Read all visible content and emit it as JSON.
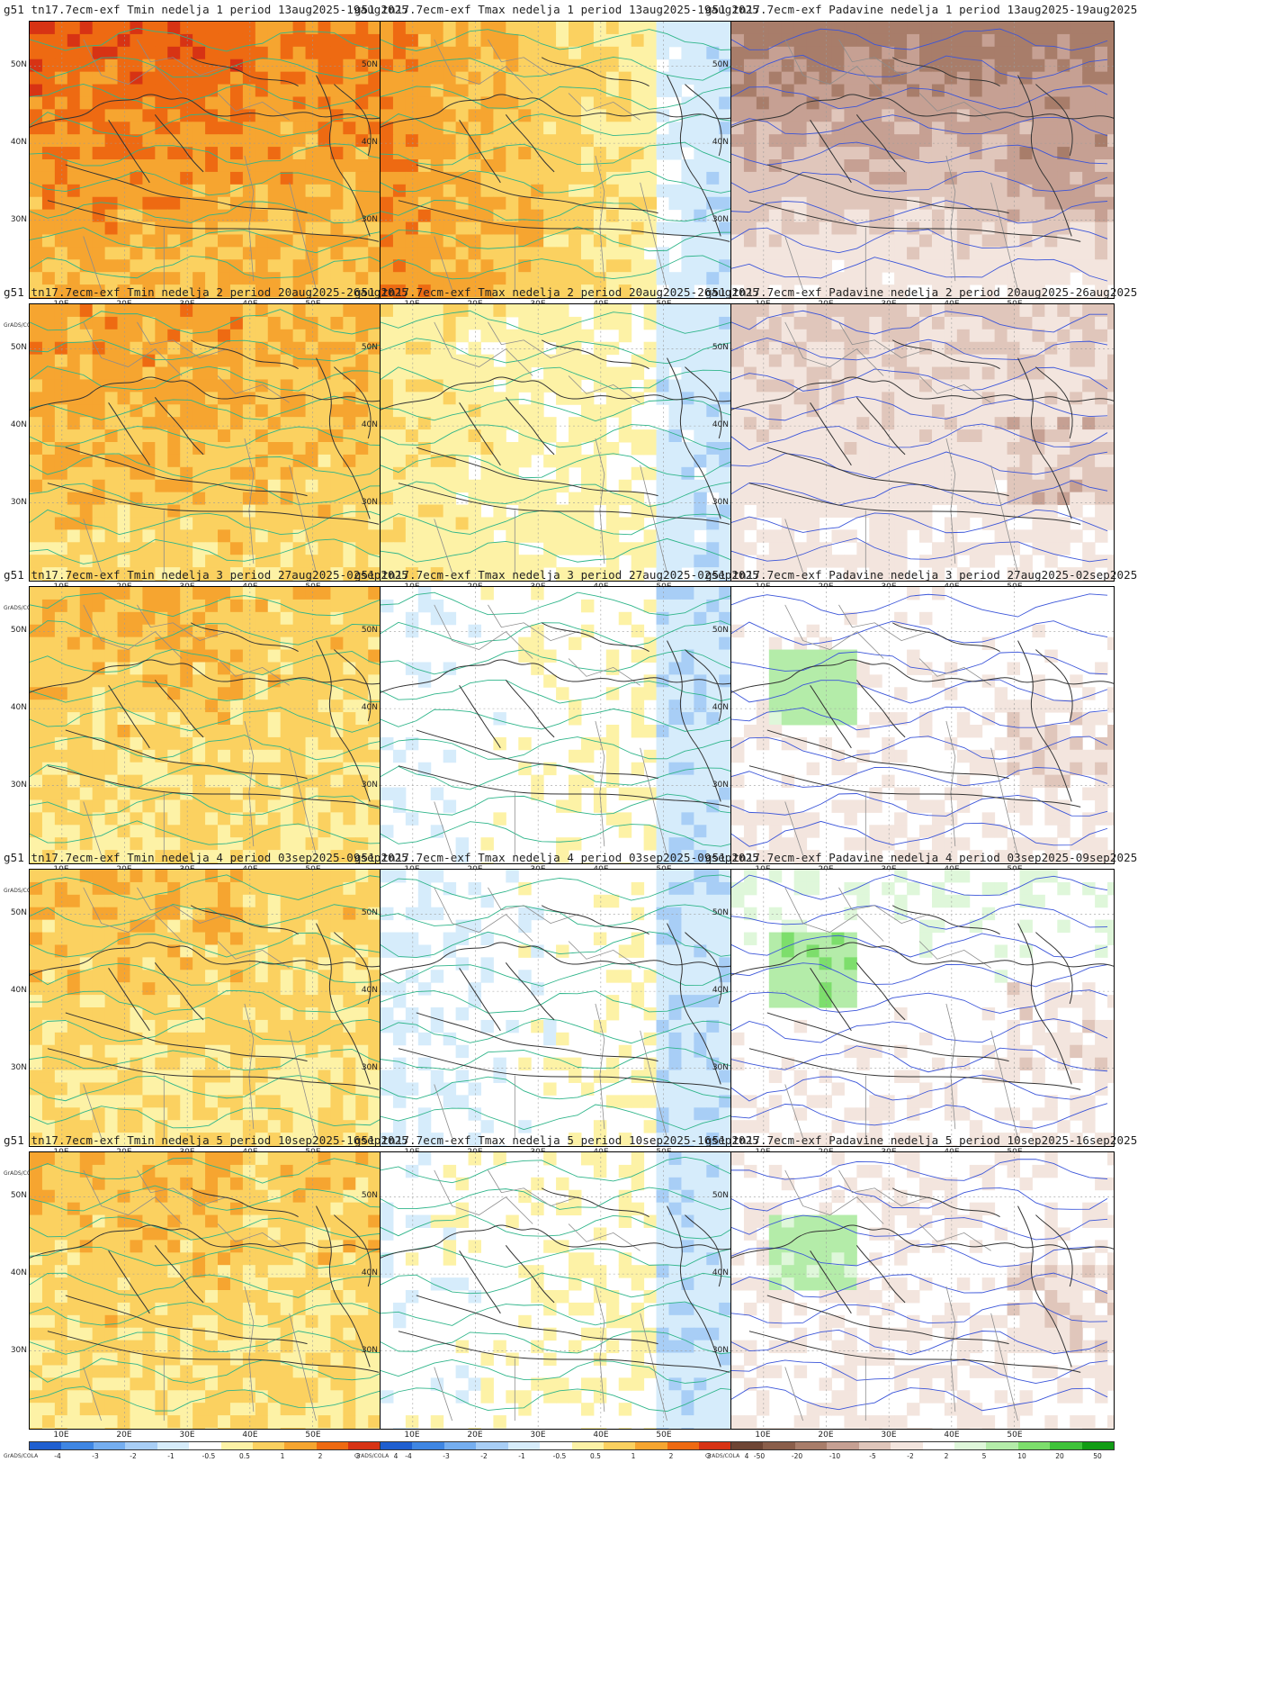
{
  "lat_labels": [
    "50N",
    "40N",
    "30N"
  ],
  "lon_labels": [
    "10E",
    "20E",
    "30E",
    "40E",
    "50E"
  ],
  "credit": "GrADS/COLA",
  "temp_scale": {
    "ticks": [
      "-4",
      "-3",
      "-2",
      "-1",
      "-0.5",
      "0.5",
      "1",
      "2",
      "3",
      "4"
    ],
    "colors": [
      "#1f5fd0",
      "#3f86e3",
      "#75aef0",
      "#a8cef6",
      "#d6ecfb",
      "#ffffff",
      "#fdf2a6",
      "#fbd160",
      "#f6a530",
      "#ee6a12",
      "#d73314",
      "#a50d0d"
    ]
  },
  "precip_scale": {
    "ticks": [
      "-50",
      "-20",
      "-10",
      "-5",
      "-2",
      "2",
      "5",
      "10",
      "20",
      "50"
    ],
    "colors": [
      "#6e4534",
      "#8a5e4a",
      "#a87d6a",
      "#c6a093",
      "#e0c6bb",
      "#f3e5de",
      "#ffffff",
      "#dff7da",
      "#b4eca9",
      "#7dde6c",
      "#3fc33a",
      "#119c14"
    ]
  },
  "panels": [
    {
      "title": "g51 tn17.7ecm-exf Tmin nedelja 1 period 13aug2025-19aug2025",
      "kind": "tmin",
      "level": 3.2
    },
    {
      "title": "g51 tn17.7ecm-exf Tmax nedelja 1 period 13aug2025-19aug2025",
      "kind": "tmax",
      "level": 2.4
    },
    {
      "title": "g51 tn17.7ecm-exf Padavine nedelja 1 period 13aug2025-19aug2025",
      "kind": "prec",
      "level": -1.6
    },
    {
      "title": "g51 tn17.7ecm-exf Tmin nedelja 2 period 20aug2025-26aug2025",
      "kind": "tmin",
      "level": 2.2
    },
    {
      "title": "g51 tn17.7ecm-exf Tmax nedelja 2 period 20aug2025-26aug2025",
      "kind": "tmax",
      "level": 0.6
    },
    {
      "title": "g51 tn17.7ecm-exf Padavine nedelja 2 period 20aug2025-26aug2025",
      "kind": "prec",
      "level": -0.5
    },
    {
      "title": "g51 tn17.7ecm-exf Tmin nedelja 3 period 27aug2025-02sep2025",
      "kind": "tmin",
      "level": 1.6
    },
    {
      "title": "g51 tn17.7ecm-exf Tmax nedelja 3 period 27aug2025-02sep2025",
      "kind": "tmax",
      "level": -0.6
    },
    {
      "title": "g51 tn17.7ecm-exf Padavine nedelja 3 period 27aug2025-02sep2025",
      "kind": "prec",
      "level": 0.2
    },
    {
      "title": "g51 tn17.7ecm-exf Tmin nedelja 4 period 03sep2025-09sep2025",
      "kind": "tmin",
      "level": 1.5
    },
    {
      "title": "g51 tn17.7ecm-exf Tmax nedelja 4 period 03sep2025-09sep2025",
      "kind": "tmax",
      "level": -0.8
    },
    {
      "title": "g51 tn17.7ecm-exf Padavine nedelja 4 period 03sep2025-09sep2025",
      "kind": "prec",
      "level": 0.4
    },
    {
      "title": "g51 tn17.7ecm-exf Tmin nedelja 5 period 10sep2025-16sep2025",
      "kind": "tmin",
      "level": 1.6
    },
    {
      "title": "g51 tn17.7ecm-exf Tmax nedelja 5 period 10sep2025-16sep2025",
      "kind": "tmax",
      "level": -0.5
    },
    {
      "title": "g51 tn17.7ecm-exf Padavine nedelja 5 period 10sep2025-16sep2025",
      "kind": "prec",
      "level": 0.1
    }
  ]
}
